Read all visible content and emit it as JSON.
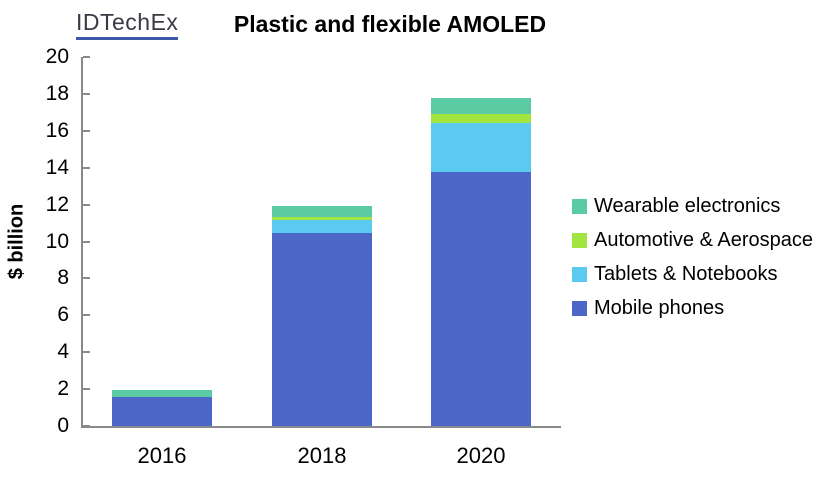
{
  "logo": {
    "text": "IDTechEx"
  },
  "chart_data": {
    "type": "bar",
    "stacked": true,
    "title": "Plastic and flexible AMOLED",
    "categories": [
      "2016",
      "2018",
      "2020"
    ],
    "series": [
      {
        "name": "Mobile phones",
        "color": "#4d67c8",
        "values": [
          1.55,
          10.45,
          13.75
        ]
      },
      {
        "name": "Tablets & Notebooks",
        "color": "#5cc9f0",
        "values": [
          0,
          0.7,
          2.65
        ]
      },
      {
        "name": "Automotive & Aerospace",
        "color": "#a2e440",
        "values": [
          0,
          0.17,
          0.52
        ]
      },
      {
        "name": "Wearable electronics",
        "color": "#5bcba3",
        "values": [
          0.43,
          0.6,
          0.87
        ]
      }
    ],
    "totals": [
      1.98,
      11.92,
      17.79
    ],
    "ylabel": "$ billion",
    "xlabel": "",
    "ylim": [
      0,
      20
    ],
    "ytick_step": 2,
    "grid": false,
    "legend_position": "right",
    "legend_order_top_to_bottom": [
      "Wearable electronics",
      "Automotive & Aerospace",
      "Tablets & Notebooks",
      "Mobile phones"
    ],
    "axis_color": "#898989"
  }
}
